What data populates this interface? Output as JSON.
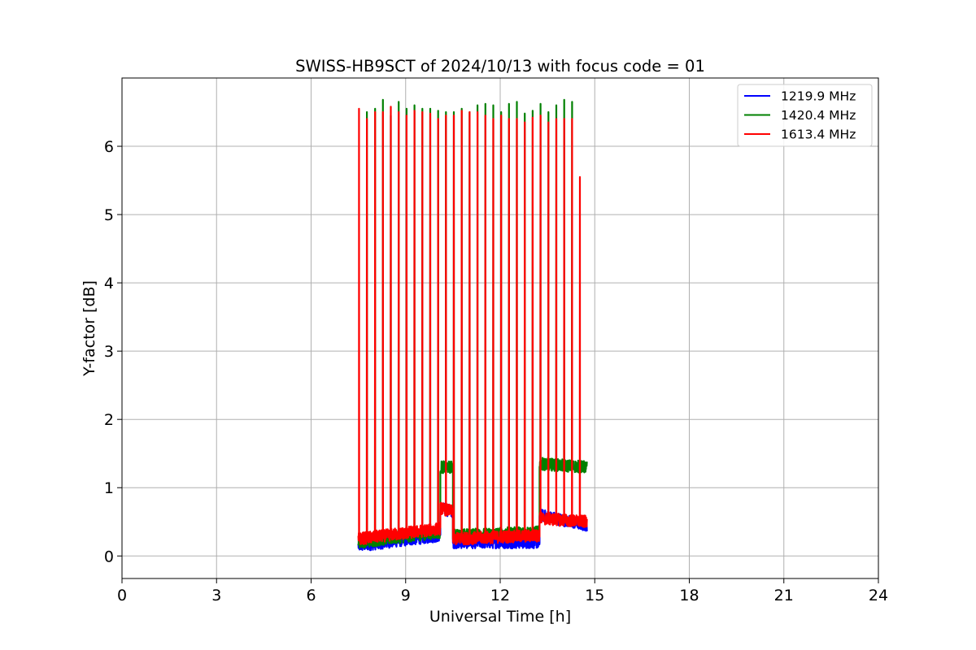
{
  "chart_data": {
    "type": "line",
    "title": "SWISS-HB9SCT of 2024/10/13 with focus code = 01",
    "xlabel": "Universal Time [h]",
    "ylabel": "Y-factor [dB]",
    "xlim": [
      0,
      24
    ],
    "ylim": [
      -0.33,
      7.0
    ],
    "xticks": [
      0,
      3,
      6,
      9,
      12,
      15,
      18,
      21,
      24
    ],
    "yticks": [
      0,
      1,
      2,
      3,
      4,
      5,
      6
    ],
    "grid": true,
    "legend_position": "upper right",
    "series": [
      {
        "name": "1219.9 MHz",
        "color": "#0000ff",
        "segments": [
          {
            "start": 7.5,
            "end": 10.1,
            "base_start": 0.15,
            "base_end": 0.3
          },
          {
            "start": 10.1,
            "end": 10.5,
            "base_start": 0.7,
            "base_end": 0.65
          },
          {
            "start": 10.5,
            "end": 13.25,
            "base_start": 0.2,
            "base_end": 0.2
          },
          {
            "start": 13.25,
            "end": 14.75,
            "base_start": 0.6,
            "base_end": 0.45
          }
        ],
        "spikes": []
      },
      {
        "name": "1420.4 MHz",
        "color": "#008000",
        "segments": [
          {
            "start": 7.5,
            "end": 10.1,
            "base_start": 0.2,
            "base_end": 0.35
          },
          {
            "start": 10.1,
            "end": 10.5,
            "base_start": 1.3,
            "base_end": 1.3
          },
          {
            "start": 10.5,
            "end": 13.25,
            "base_start": 0.3,
            "base_end": 0.35
          },
          {
            "start": 13.25,
            "end": 14.75,
            "base_start": 1.35,
            "base_end": 1.3
          }
        ],
        "spikes": [
          {
            "x": 7.77,
            "y": 6.5
          },
          {
            "x": 8.03,
            "y": 6.55
          },
          {
            "x": 8.28,
            "y": 6.68
          },
          {
            "x": 8.53,
            "y": 6.45
          },
          {
            "x": 8.78,
            "y": 6.65
          },
          {
            "x": 9.03,
            "y": 6.55
          },
          {
            "x": 9.28,
            "y": 6.6
          },
          {
            "x": 9.53,
            "y": 6.55
          },
          {
            "x": 9.78,
            "y": 6.55
          },
          {
            "x": 10.03,
            "y": 6.52
          },
          {
            "x": 10.28,
            "y": 6.5
          },
          {
            "x": 10.53,
            "y": 6.5
          },
          {
            "x": 10.78,
            "y": 6.55
          },
          {
            "x": 11.03,
            "y": 6.5
          },
          {
            "x": 11.28,
            "y": 6.6
          },
          {
            "x": 11.53,
            "y": 6.62
          },
          {
            "x": 11.78,
            "y": 6.6
          },
          {
            "x": 12.03,
            "y": 6.5
          },
          {
            "x": 12.28,
            "y": 6.62
          },
          {
            "x": 12.53,
            "y": 6.65
          },
          {
            "x": 12.78,
            "y": 6.48
          },
          {
            "x": 13.03,
            "y": 6.52
          },
          {
            "x": 13.28,
            "y": 6.62
          },
          {
            "x": 13.53,
            "y": 6.5
          },
          {
            "x": 13.78,
            "y": 6.6
          },
          {
            "x": 14.03,
            "y": 6.68
          },
          {
            "x": 14.28,
            "y": 6.65
          }
        ]
      },
      {
        "name": "1613.4 MHz",
        "color": "#ff0000",
        "segments": [
          {
            "start": 7.5,
            "end": 10.1,
            "base_start": 0.25,
            "base_end": 0.4
          },
          {
            "start": 10.1,
            "end": 10.5,
            "base_start": 0.7,
            "base_end": 0.65
          },
          {
            "start": 10.5,
            "end": 13.25,
            "base_start": 0.25,
            "base_end": 0.3
          },
          {
            "start": 13.25,
            "end": 14.75,
            "base_start": 0.55,
            "base_end": 0.5
          }
        ],
        "spikes": [
          {
            "x": 7.52,
            "y": 6.55
          },
          {
            "x": 7.77,
            "y": 6.4
          },
          {
            "x": 8.03,
            "y": 6.5
          },
          {
            "x": 8.28,
            "y": 6.5
          },
          {
            "x": 8.53,
            "y": 6.58
          },
          {
            "x": 8.78,
            "y": 6.5
          },
          {
            "x": 9.03,
            "y": 6.45
          },
          {
            "x": 9.28,
            "y": 6.52
          },
          {
            "x": 9.53,
            "y": 6.5
          },
          {
            "x": 9.78,
            "y": 6.48
          },
          {
            "x": 10.03,
            "y": 6.4
          },
          {
            "x": 10.28,
            "y": 6.45
          },
          {
            "x": 10.53,
            "y": 6.45
          },
          {
            "x": 10.78,
            "y": 6.52
          },
          {
            "x": 11.03,
            "y": 6.5
          },
          {
            "x": 11.28,
            "y": 6.5
          },
          {
            "x": 11.53,
            "y": 6.45
          },
          {
            "x": 11.78,
            "y": 6.4
          },
          {
            "x": 12.03,
            "y": 6.45
          },
          {
            "x": 12.28,
            "y": 6.4
          },
          {
            "x": 12.53,
            "y": 6.4
          },
          {
            "x": 12.78,
            "y": 6.35
          },
          {
            "x": 13.03,
            "y": 6.42
          },
          {
            "x": 13.28,
            "y": 6.45
          },
          {
            "x": 13.53,
            "y": 6.35
          },
          {
            "x": 13.78,
            "y": 6.4
          },
          {
            "x": 14.03,
            "y": 6.4
          },
          {
            "x": 14.28,
            "y": 6.4
          },
          {
            "x": 14.53,
            "y": 5.55
          }
        ]
      }
    ]
  }
}
